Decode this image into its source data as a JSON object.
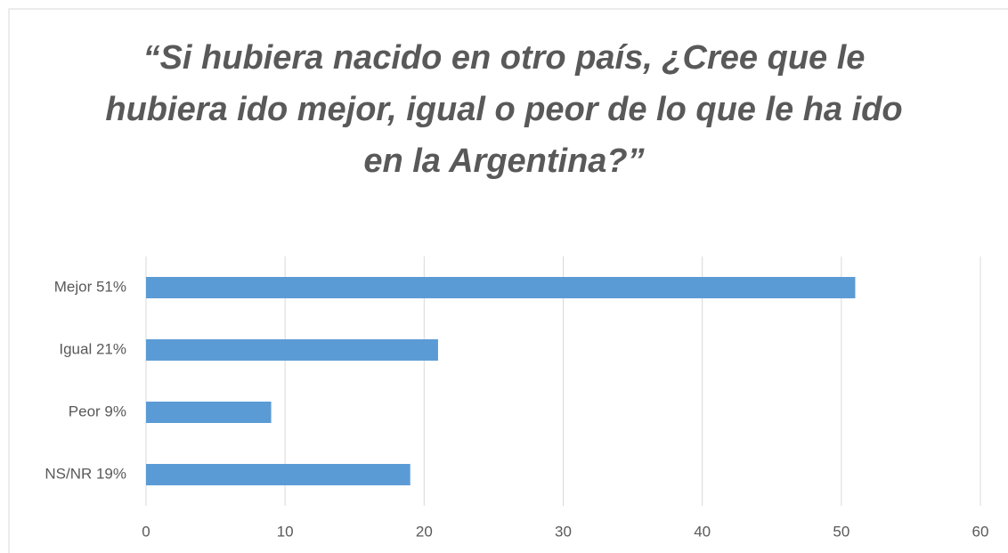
{
  "chart_data": {
    "type": "hbar",
    "title": "“Si hubiera nacido en otro país, ¿Cree que le hubiera ido mejor, igual o peor de lo que le ha ido en la Argentina?”",
    "categories": [
      "Mejor  51%",
      "Igual  21%",
      "Peor  9%",
      "NS/NR  19%"
    ],
    "values": [
      51,
      21,
      9,
      19
    ],
    "color": "#5b9bd5",
    "xlim": [
      0,
      60
    ],
    "xticks": [
      0,
      10,
      20,
      30,
      40,
      50,
      60
    ],
    "grid": true
  }
}
